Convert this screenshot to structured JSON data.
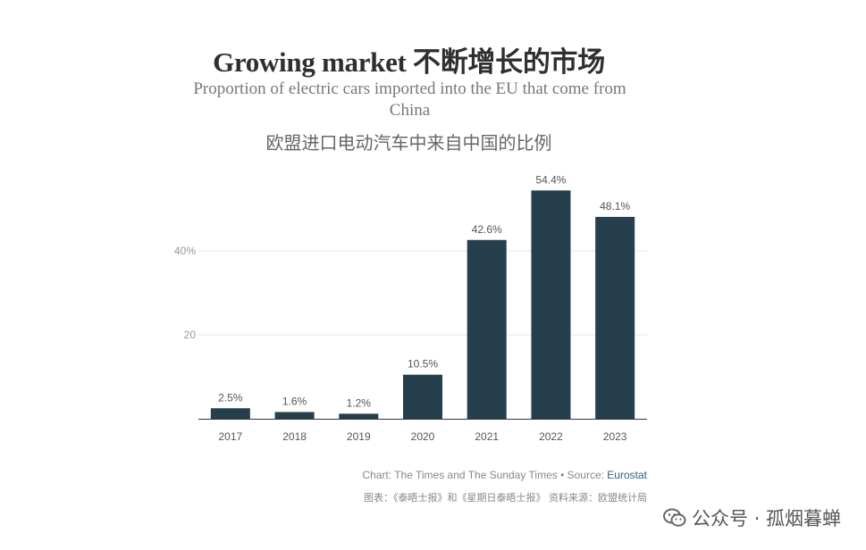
{
  "header": {
    "title_en": "Growing market",
    "title_cn": "不断增长的市场",
    "subtitle_en": "Proportion of electric cars imported into the EU that come from China",
    "subtitle_cn": "欧盟进口电动汽车中来自中国的比例"
  },
  "chart_data": {
    "type": "bar",
    "categories": [
      "2017",
      "2018",
      "2019",
      "2020",
      "2021",
      "2022",
      "2023"
    ],
    "values": [
      2.5,
      1.6,
      1.2,
      10.5,
      42.6,
      54.4,
      48.1
    ],
    "value_labels": [
      "2.5%",
      "1.6%",
      "1.2%",
      "10.5%",
      "42.6%",
      "54.4%",
      "48.1%"
    ],
    "yticks": [
      {
        "value": 20,
        "label": "20"
      },
      {
        "value": 40,
        "label": "40%"
      }
    ],
    "ylim": [
      0,
      58
    ],
    "bar_color": "#253f4d",
    "grid": true
  },
  "footer": {
    "credit_prefix": "Chart: The Times and The Sunday Times • Source: ",
    "credit_source": "Eurostat",
    "credit_cn": "图表：《泰晤士报》和《星期日泰晤士报》 资料来源：欧盟统计局"
  },
  "watermark": {
    "text": "公众号 · 孤烟暮蝉",
    "icon": "wechat-icon"
  }
}
